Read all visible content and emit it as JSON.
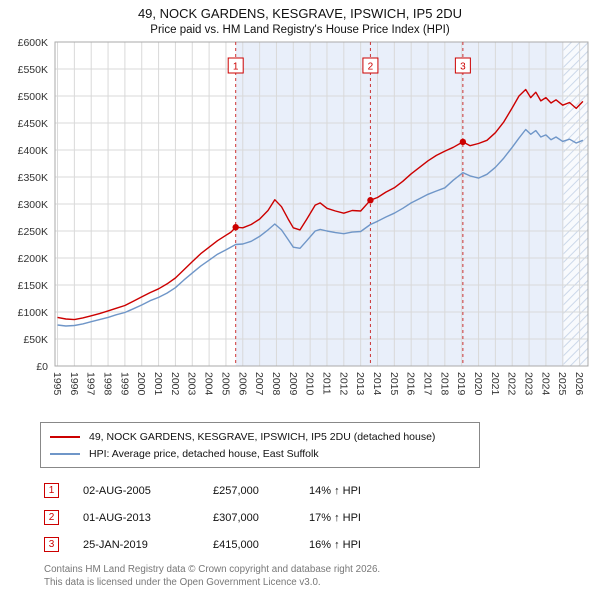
{
  "title": {
    "line1": "49, NOCK GARDENS, KESGRAVE, IPSWICH, IP5 2DU",
    "line2": "Price paid vs. HM Land Registry's House Price Index (HPI)"
  },
  "chart_data": {
    "type": "line",
    "title": "49, NOCK GARDENS, KESGRAVE, IPSWICH, IP5 2DU",
    "subtitle": "Price paid vs. HM Land Registry's House Price Index (HPI)",
    "ylim": [
      0,
      600000
    ],
    "ytick_step": 50000,
    "ytick_labels": [
      "£0",
      "£50K",
      "£100K",
      "£150K",
      "£200K",
      "£250K",
      "£300K",
      "£350K",
      "£400K",
      "£450K",
      "£500K",
      "£550K",
      "£600K"
    ],
    "x_range": [
      1994.85,
      2026.5
    ],
    "x_ticks": [
      1995,
      1996,
      1997,
      1998,
      1999,
      2000,
      2001,
      2002,
      2003,
      2004,
      2005,
      2006,
      2007,
      2008,
      2009,
      2010,
      2011,
      2012,
      2013,
      2014,
      2015,
      2016,
      2017,
      2018,
      2019,
      2020,
      2021,
      2022,
      2023,
      2024,
      2025,
      2026
    ],
    "grid": true,
    "legend_position": "below",
    "shaded_from": 2005.58,
    "shaded_color": "#e9effa",
    "future_from": 2025.05,
    "marker_color": "#cc0000",
    "series": [
      {
        "name": "49, NOCK GARDENS, KESGRAVE, IPSWICH, IP5 2DU (detached house)",
        "color": "#cc0000",
        "points": [
          [
            1995.0,
            90000
          ],
          [
            1995.5,
            87000
          ],
          [
            1996.0,
            86000
          ],
          [
            1996.5,
            89000
          ],
          [
            1997.0,
            93000
          ],
          [
            1997.5,
            97000
          ],
          [
            1998.0,
            102000
          ],
          [
            1998.5,
            107000
          ],
          [
            1999.0,
            112000
          ],
          [
            1999.5,
            120000
          ],
          [
            2000.0,
            128000
          ],
          [
            2000.5,
            136000
          ],
          [
            2001.0,
            143000
          ],
          [
            2001.5,
            152000
          ],
          [
            2002.0,
            163000
          ],
          [
            2002.5,
            178000
          ],
          [
            2003.0,
            193000
          ],
          [
            2003.5,
            208000
          ],
          [
            2004.0,
            220000
          ],
          [
            2004.5,
            232000
          ],
          [
            2005.0,
            242000
          ],
          [
            2005.3,
            248000
          ],
          [
            2005.58,
            257000
          ],
          [
            2006.0,
            256000
          ],
          [
            2006.5,
            262000
          ],
          [
            2007.0,
            272000
          ],
          [
            2007.5,
            288000
          ],
          [
            2007.9,
            308000
          ],
          [
            2008.3,
            295000
          ],
          [
            2008.7,
            272000
          ],
          [
            2009.0,
            256000
          ],
          [
            2009.4,
            252000
          ],
          [
            2009.8,
            272000
          ],
          [
            2010.3,
            298000
          ],
          [
            2010.6,
            302000
          ],
          [
            2011.0,
            292000
          ],
          [
            2011.5,
            287000
          ],
          [
            2012.0,
            283000
          ],
          [
            2012.5,
            288000
          ],
          [
            2013.0,
            287000
          ],
          [
            2013.58,
            307000
          ],
          [
            2014.0,
            312000
          ],
          [
            2014.5,
            322000
          ],
          [
            2015.0,
            330000
          ],
          [
            2015.5,
            342000
          ],
          [
            2016.0,
            356000
          ],
          [
            2016.5,
            368000
          ],
          [
            2017.0,
            380000
          ],
          [
            2017.5,
            390000
          ],
          [
            2018.0,
            398000
          ],
          [
            2018.5,
            405000
          ],
          [
            2019.07,
            415000
          ],
          [
            2019.5,
            408000
          ],
          [
            2020.0,
            412000
          ],
          [
            2020.5,
            418000
          ],
          [
            2021.0,
            432000
          ],
          [
            2021.5,
            452000
          ],
          [
            2022.0,
            478000
          ],
          [
            2022.4,
            500000
          ],
          [
            2022.8,
            512000
          ],
          [
            2023.1,
            497000
          ],
          [
            2023.4,
            507000
          ],
          [
            2023.7,
            491000
          ],
          [
            2024.0,
            497000
          ],
          [
            2024.3,
            487000
          ],
          [
            2024.6,
            493000
          ],
          [
            2025.0,
            483000
          ],
          [
            2025.4,
            488000
          ],
          [
            2025.8,
            477000
          ],
          [
            2026.2,
            490000
          ]
        ]
      },
      {
        "name": "HPI: Average price, detached house, East Suffolk",
        "color": "#6f96c8",
        "points": [
          [
            1995.0,
            76000
          ],
          [
            1995.5,
            74000
          ],
          [
            1996.0,
            75000
          ],
          [
            1996.5,
            78000
          ],
          [
            1997.0,
            82000
          ],
          [
            1997.5,
            86000
          ],
          [
            1998.0,
            90000
          ],
          [
            1998.5,
            95000
          ],
          [
            1999.0,
            99000
          ],
          [
            1999.5,
            106000
          ],
          [
            2000.0,
            113000
          ],
          [
            2000.5,
            121000
          ],
          [
            2001.0,
            127000
          ],
          [
            2001.5,
            135000
          ],
          [
            2002.0,
            145000
          ],
          [
            2002.5,
            159000
          ],
          [
            2003.0,
            172000
          ],
          [
            2003.5,
            185000
          ],
          [
            2004.0,
            196000
          ],
          [
            2004.5,
            207000
          ],
          [
            2005.0,
            215000
          ],
          [
            2005.58,
            225000
          ],
          [
            2006.0,
            226000
          ],
          [
            2006.5,
            231000
          ],
          [
            2007.0,
            240000
          ],
          [
            2007.5,
            252000
          ],
          [
            2007.9,
            263000
          ],
          [
            2008.3,
            252000
          ],
          [
            2008.7,
            234000
          ],
          [
            2009.0,
            220000
          ],
          [
            2009.4,
            218000
          ],
          [
            2009.8,
            232000
          ],
          [
            2010.3,
            250000
          ],
          [
            2010.6,
            253000
          ],
          [
            2011.0,
            250000
          ],
          [
            2011.5,
            247000
          ],
          [
            2012.0,
            245000
          ],
          [
            2012.5,
            248000
          ],
          [
            2013.0,
            249000
          ],
          [
            2013.58,
            262000
          ],
          [
            2014.0,
            268000
          ],
          [
            2014.5,
            276000
          ],
          [
            2015.0,
            283000
          ],
          [
            2015.5,
            292000
          ],
          [
            2016.0,
            302000
          ],
          [
            2016.5,
            310000
          ],
          [
            2017.0,
            318000
          ],
          [
            2017.5,
            324000
          ],
          [
            2018.0,
            330000
          ],
          [
            2018.5,
            344000
          ],
          [
            2019.07,
            358000
          ],
          [
            2019.5,
            352000
          ],
          [
            2020.0,
            348000
          ],
          [
            2020.5,
            355000
          ],
          [
            2021.0,
            368000
          ],
          [
            2021.5,
            385000
          ],
          [
            2022.0,
            405000
          ],
          [
            2022.4,
            422000
          ],
          [
            2022.8,
            438000
          ],
          [
            2023.1,
            429000
          ],
          [
            2023.4,
            436000
          ],
          [
            2023.7,
            424000
          ],
          [
            2024.0,
            428000
          ],
          [
            2024.3,
            419000
          ],
          [
            2024.6,
            424000
          ],
          [
            2025.0,
            416000
          ],
          [
            2025.4,
            420000
          ],
          [
            2025.8,
            413000
          ],
          [
            2026.2,
            418000
          ]
        ]
      }
    ],
    "markers": [
      {
        "label": "1",
        "x": 2005.58,
        "y": 257000
      },
      {
        "label": "2",
        "x": 2013.58,
        "y": 307000
      },
      {
        "label": "3",
        "x": 2019.07,
        "y": 415000
      }
    ]
  },
  "legend": {
    "items": [
      {
        "label": "49, NOCK GARDENS, KESGRAVE, IPSWICH, IP5 2DU (detached house)"
      },
      {
        "label": "HPI: Average price, detached house, East Suffolk"
      }
    ]
  },
  "transactions": [
    {
      "num": "1",
      "date": "02-AUG-2005",
      "price": "£257,000",
      "vs_hpi": "14% ↑ HPI"
    },
    {
      "num": "2",
      "date": "01-AUG-2013",
      "price": "£307,000",
      "vs_hpi": "17% ↑ HPI"
    },
    {
      "num": "3",
      "date": "25-JAN-2019",
      "price": "£415,000",
      "vs_hpi": "16% ↑ HPI"
    }
  ],
  "footer": {
    "line1": "Contains HM Land Registry data © Crown copyright and database right 2026.",
    "line2": "This data is licensed under the Open Government Licence v3.0."
  }
}
